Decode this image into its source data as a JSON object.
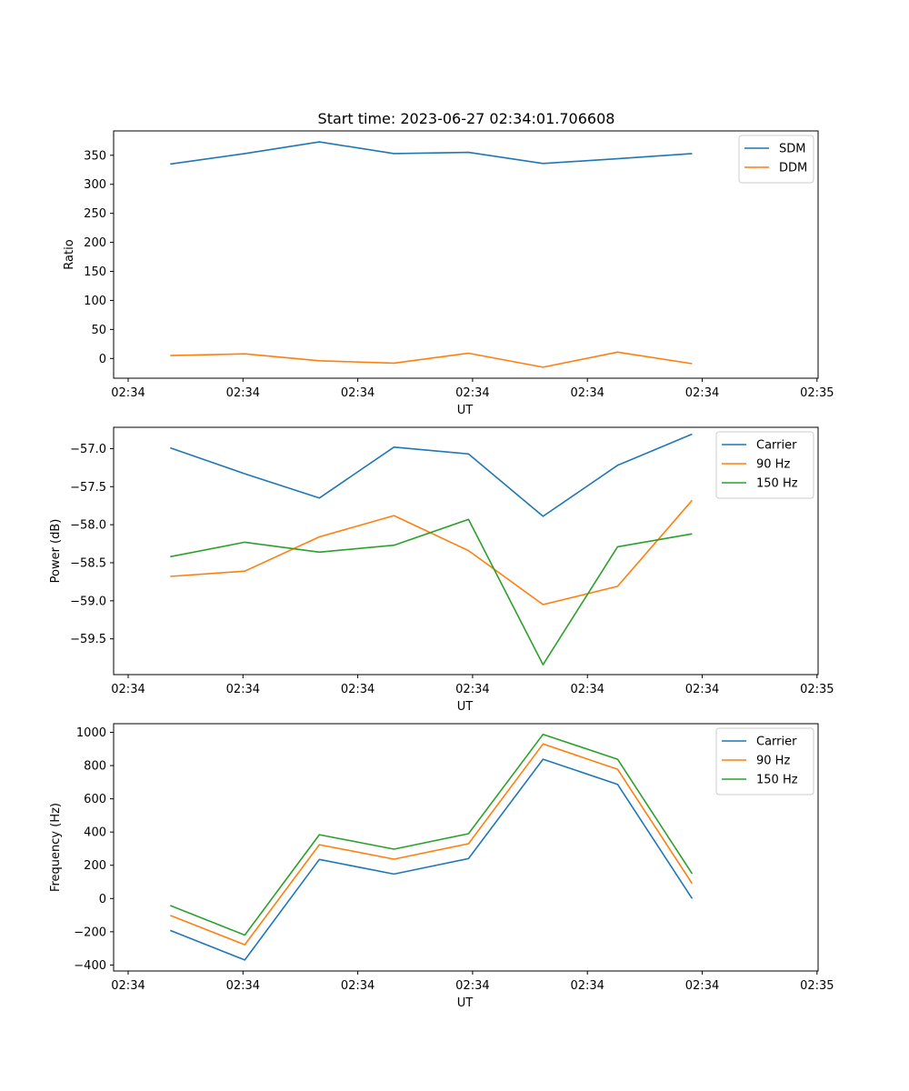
{
  "figure": {
    "title": "Start time: 2023-06-27 02:34:01.706608"
  },
  "chart_data": [
    {
      "type": "line",
      "title": "Start time: 2023-06-27 02:34:01.706608",
      "xlabel": "UT",
      "ylabel": "Ratio",
      "x_tick_labels": [
        "02:34",
        "02:34",
        "02:34",
        "02:34",
        "02:34",
        "02:34",
        "02:35"
      ],
      "y_ticks": [
        0,
        50,
        100,
        150,
        200,
        250,
        300,
        350
      ],
      "xlim": [
        -0.38,
        9.07
      ],
      "ylim": [
        -34,
        392
      ],
      "grid": false,
      "legend": "top-right",
      "x": [
        0.38,
        1.38,
        2.38,
        3.38,
        4.38,
        5.38,
        6.38,
        7.38
      ],
      "series": [
        {
          "name": "SDM",
          "color": "#1f77b4",
          "values": [
            335,
            353,
            373,
            353,
            355,
            336,
            344,
            353
          ]
        },
        {
          "name": "DDM",
          "color": "#ff7f0e",
          "values": [
            5,
            8,
            -4,
            -8,
            9,
            -15,
            11,
            -9
          ]
        }
      ]
    },
    {
      "type": "line",
      "xlabel": "UT",
      "ylabel": "Power (dB)",
      "x_tick_labels": [
        "02:34",
        "02:34",
        "02:34",
        "02:34",
        "02:34",
        "02:34",
        "02:35"
      ],
      "y_ticks": [
        -59.5,
        -59.0,
        -58.5,
        -58.0,
        -57.5,
        -57.0
      ],
      "y_tick_labels": [
        "−59.5",
        "−59.0",
        "−58.5",
        "−58.0",
        "−57.5",
        "−57.0"
      ],
      "xlim": [
        -0.38,
        9.07
      ],
      "ylim": [
        -59.97,
        -56.72
      ],
      "grid": false,
      "legend": "top-right",
      "x": [
        0.38,
        1.38,
        2.38,
        3.38,
        4.38,
        5.38,
        6.38,
        7.38
      ],
      "series": [
        {
          "name": "Carrier",
          "color": "#1f77b4",
          "values": [
            -56.99,
            -57.33,
            -57.65,
            -56.98,
            -57.07,
            -57.89,
            -57.22,
            -56.81
          ]
        },
        {
          "name": "90 Hz",
          "color": "#ff7f0e",
          "values": [
            -58.68,
            -58.61,
            -58.16,
            -57.88,
            -58.34,
            -59.05,
            -58.81,
            -57.68
          ]
        },
        {
          "name": "150 Hz",
          "color": "#2ca02c",
          "values": [
            -58.42,
            -58.23,
            -58.36,
            -58.27,
            -57.93,
            -59.84,
            -58.29,
            -58.12
          ]
        }
      ]
    },
    {
      "type": "line",
      "xlabel": "UT",
      "ylabel": "Frequency (Hz)",
      "x_tick_labels": [
        "02:34",
        "02:34",
        "02:34",
        "02:34",
        "02:34",
        "02:34",
        "02:35"
      ],
      "y_ticks": [
        -400,
        -200,
        0,
        200,
        400,
        600,
        800,
        1000
      ],
      "y_tick_labels": [
        "−400",
        "−200",
        "0",
        "200",
        "400",
        "600",
        "800",
        "1000"
      ],
      "xlim": [
        -0.38,
        9.07
      ],
      "ylim": [
        -436,
        1052
      ],
      "grid": false,
      "legend": "top-right",
      "x": [
        0.38,
        1.38,
        2.38,
        3.38,
        4.38,
        5.38,
        6.38,
        7.38
      ],
      "series": [
        {
          "name": "Carrier",
          "color": "#1f77b4",
          "values": [
            -192,
            -370,
            235,
            147,
            240,
            838,
            687,
            0
          ]
        },
        {
          "name": "90 Hz",
          "color": "#ff7f0e",
          "values": [
            -102,
            -278,
            324,
            237,
            330,
            930,
            778,
            90
          ]
        },
        {
          "name": "150 Hz",
          "color": "#2ca02c",
          "values": [
            -42,
            -220,
            384,
            297,
            390,
            988,
            838,
            150
          ]
        }
      ]
    }
  ]
}
